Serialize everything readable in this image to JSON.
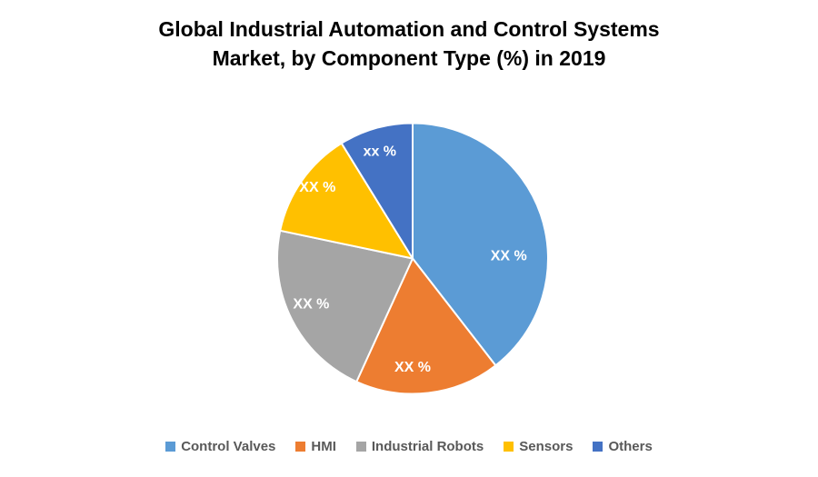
{
  "title": {
    "line1": "Global Industrial Automation and Control Systems",
    "line2": "Market, by Component Type (%) in 2019"
  },
  "chart_data": {
    "type": "pie",
    "title": "Global Industrial Automation and Control Systems Market, by Component Type (%) in 2019",
    "legend_position": "bottom",
    "start_angle_deg": 0,
    "clockwise": true,
    "data_labels_masked": true,
    "slices": [
      {
        "label": "Control Valves",
        "data_label": "XX %",
        "value_pct_estimated": 39.5,
        "color": "#5B9BD5",
        "label_angle_deg": 88,
        "label_radius_frac": 0.71
      },
      {
        "label": "HMI",
        "data_label": "XX %",
        "value_pct_estimated": 17.3,
        "color": "#ED7D31",
        "label_angle_deg": 180,
        "label_radius_frac": 0.8
      },
      {
        "label": "Industrial Robots",
        "data_label": "XX %",
        "value_pct_estimated": 21.5,
        "color": "#A5A5A5",
        "label_angle_deg": 246,
        "label_radius_frac": 0.82
      },
      {
        "label": "Sensors",
        "data_label": "XX %",
        "value_pct_estimated": 12.9,
        "color": "#FFC000",
        "label_angle_deg": 307,
        "label_radius_frac": 0.88
      },
      {
        "label": "Others",
        "data_label": "xx %",
        "value_pct_estimated": 8.8,
        "color": "#4472C4",
        "label_angle_deg": 343,
        "label_radius_frac": 0.83
      }
    ]
  }
}
